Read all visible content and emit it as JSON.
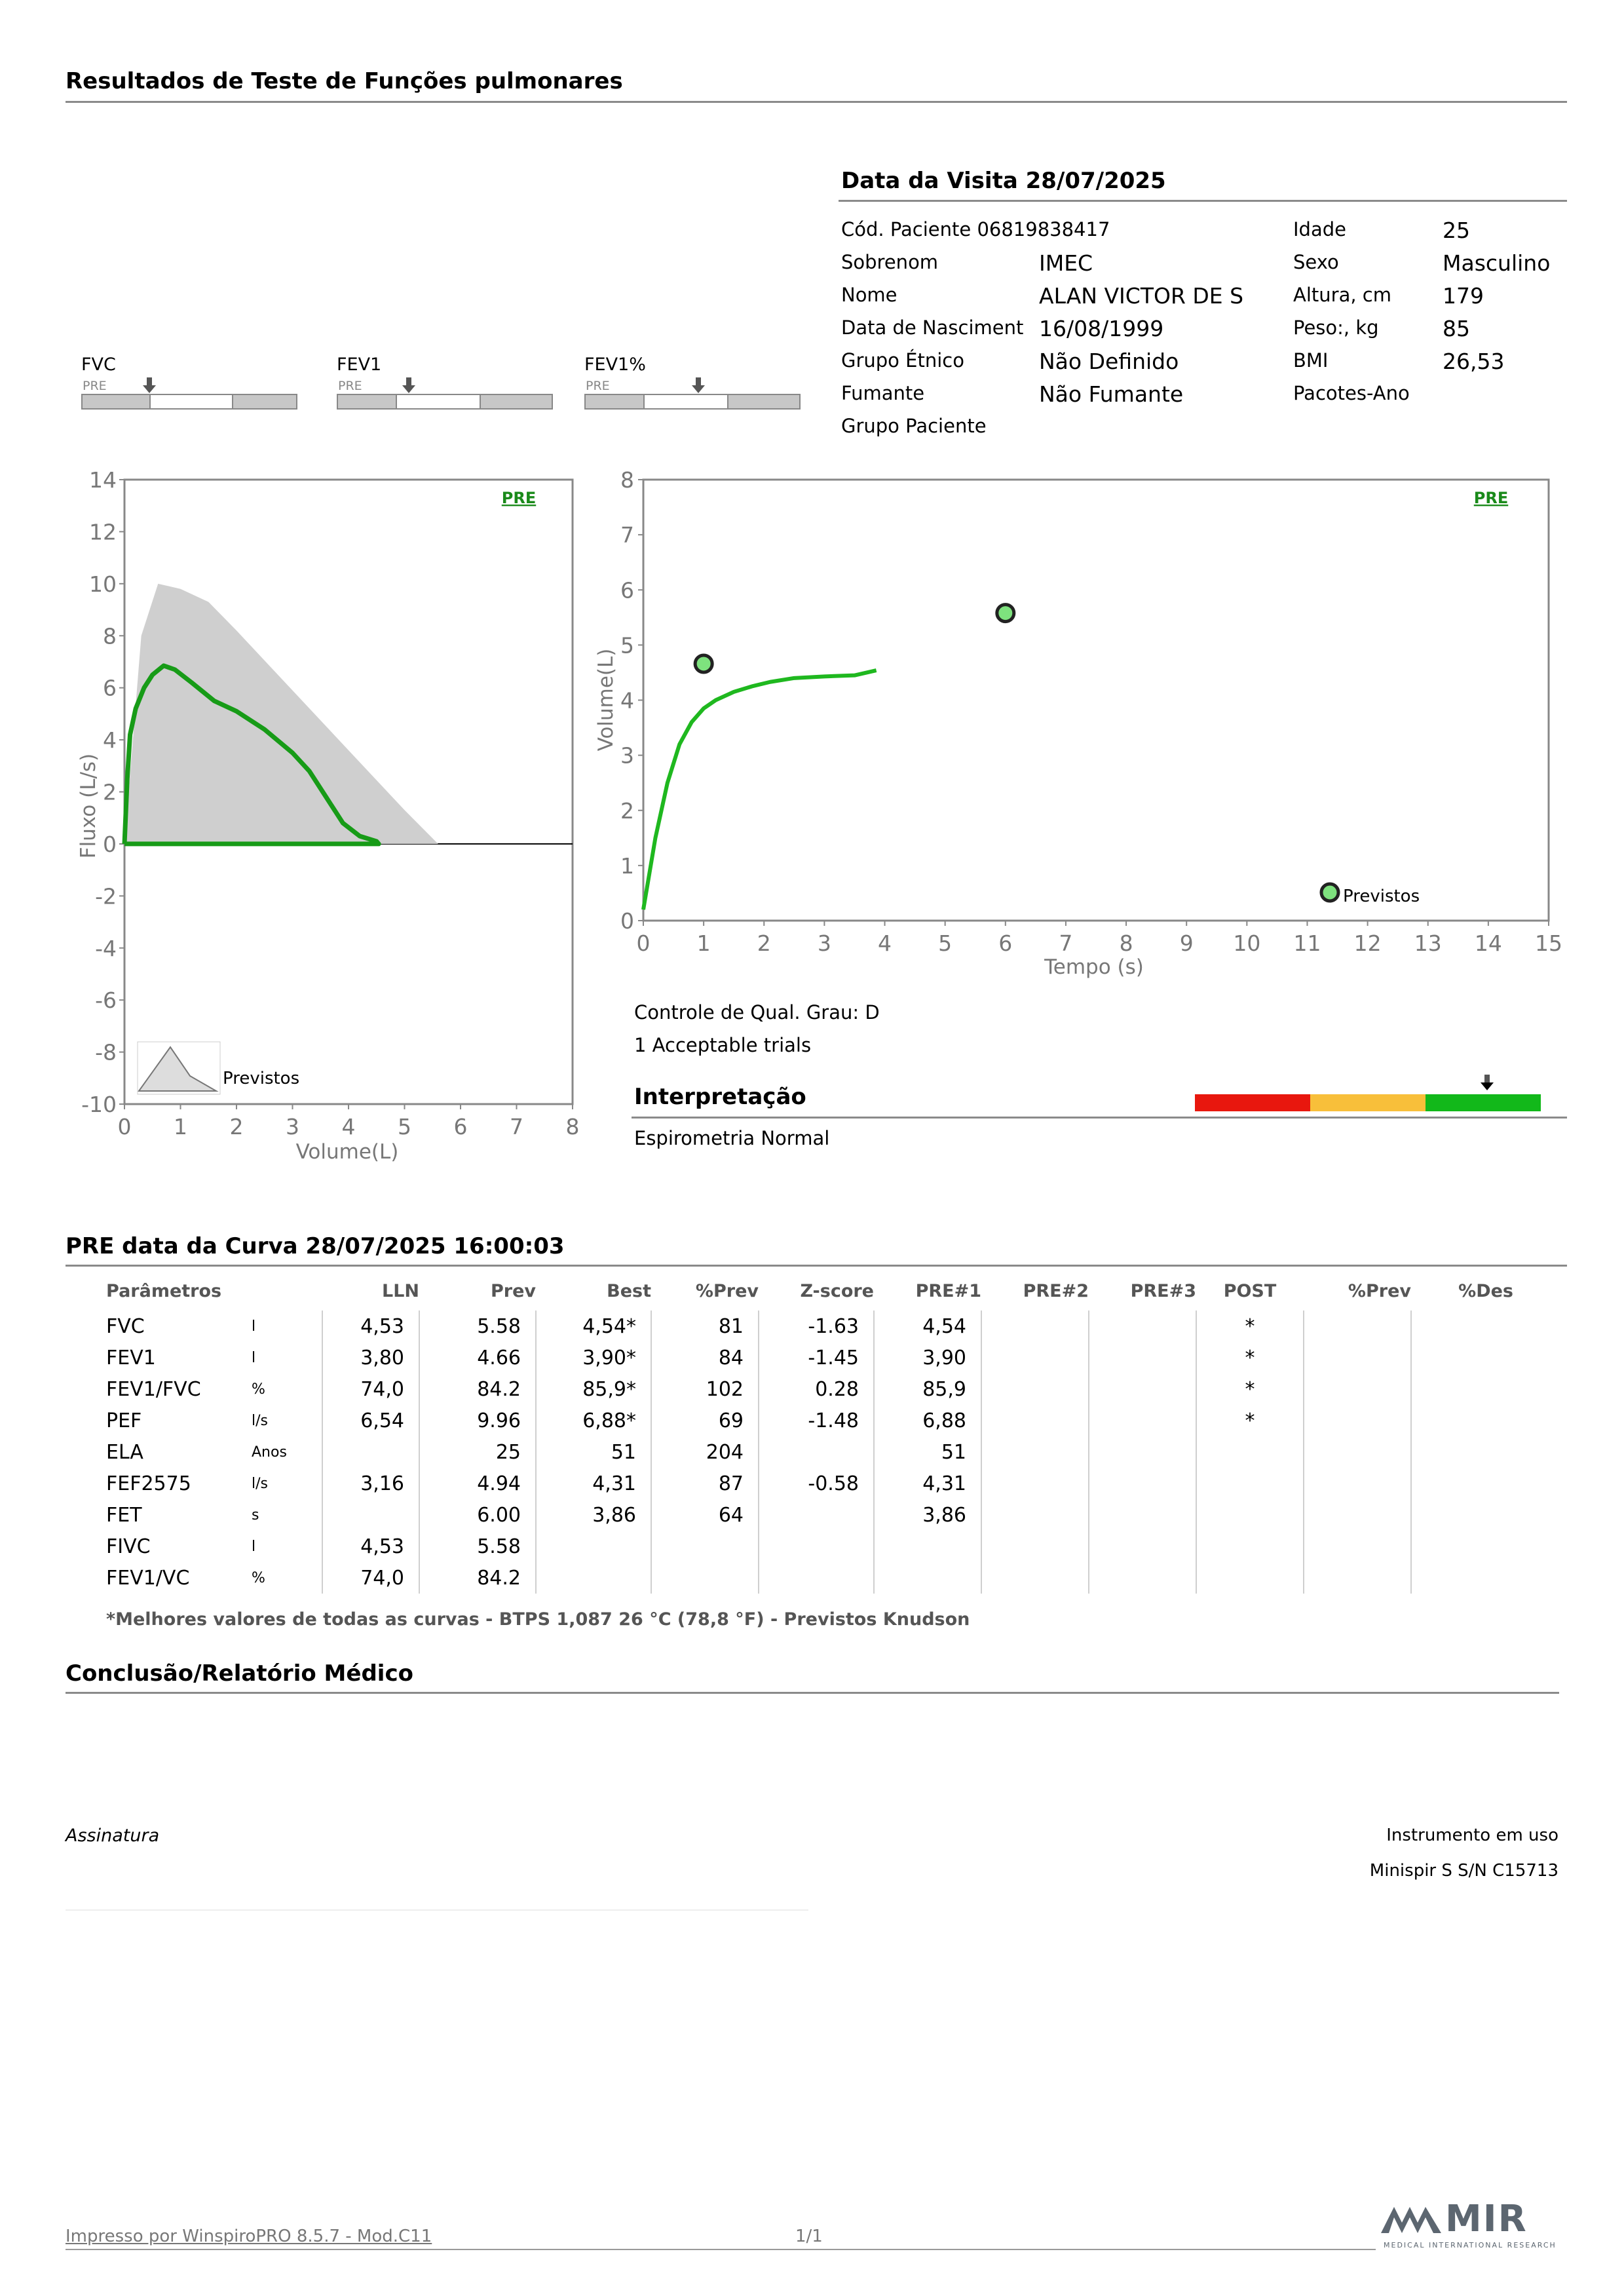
{
  "header": {
    "title": "Resultados de Teste de Funções pulmonares"
  },
  "visit": {
    "title": "Data da Visita 28/07/2025",
    "left": [
      {
        "label": "Cód. Paciente 06819838417",
        "value": ""
      },
      {
        "label": "Sobrenom",
        "value": "IMEC"
      },
      {
        "label": "Nome",
        "value": "ALAN VICTOR DE S"
      },
      {
        "label": "Data de Nasciment",
        "value": "16/08/1999"
      },
      {
        "label": "Grupo Étnico",
        "value": "Não Definido"
      },
      {
        "label": "Fumante",
        "value": "Não Fumante"
      },
      {
        "label": "Grupo Paciente",
        "value": ""
      }
    ],
    "right": [
      {
        "label": "Idade",
        "value": "25"
      },
      {
        "label": "Sexo",
        "value": "Masculino"
      },
      {
        "label": "Altura, cm",
        "value": "179"
      },
      {
        "label": "Peso:, kg",
        "value": "85"
      },
      {
        "label": "BMI",
        "value": "26,53"
      },
      {
        "label": "Pacotes-Ano",
        "value": ""
      }
    ]
  },
  "gauges": [
    {
      "label": "FVC",
      "pre": "PRE"
    },
    {
      "label": "FEV1",
      "pre": "PRE"
    },
    {
      "label": "FEV1%",
      "pre": "PRE"
    }
  ],
  "chart_data": [
    {
      "type": "line",
      "title": "",
      "tag": "PRE",
      "xlabel": "Volume(L)",
      "ylabel": "Fluxo (L/s)",
      "xlim": [
        0,
        8
      ],
      "ylim": [
        -10,
        14
      ],
      "xticks": [
        "0",
        "1",
        "2",
        "3",
        "4",
        "5",
        "6",
        "7",
        "8"
      ],
      "yticks": [
        "14",
        "12",
        "10",
        "8",
        "6",
        "4",
        "2",
        "0",
        "-2",
        "-4",
        "-6",
        "-8",
        "-10"
      ],
      "predicted": {
        "name": "Previstos",
        "x": [
          0,
          0.3,
          0.6,
          1.0,
          1.5,
          2.0,
          3.0,
          4.0,
          5.0,
          5.6
        ],
        "y": [
          0,
          8,
          10,
          9.8,
          9.3,
          8.2,
          5.9,
          3.6,
          1.3,
          0
        ]
      },
      "series": [
        {
          "x": [
            0,
            0.05,
            0.1,
            0.2,
            0.35,
            0.5,
            0.7,
            0.9,
            1.2,
            1.6,
            2.0,
            2.5,
            3.0,
            3.3,
            3.6,
            3.9,
            4.2,
            4.5,
            4.54,
            4.0,
            3.0,
            2.0,
            1.0,
            0.2,
            0
          ],
          "y": [
            0,
            2.5,
            4.2,
            5.2,
            6.0,
            6.5,
            6.85,
            6.7,
            6.2,
            5.5,
            5.1,
            4.4,
            3.5,
            2.8,
            1.8,
            0.8,
            0.3,
            0.1,
            0,
            0,
            0,
            0,
            0,
            0,
            0
          ]
        }
      ]
    },
    {
      "type": "line",
      "title": "",
      "tag": "PRE",
      "xlabel": "Tempo (s)",
      "ylabel": "Volume(L)",
      "xlim": [
        0,
        15
      ],
      "ylim": [
        0,
        8
      ],
      "xticks": [
        "0",
        "1",
        "2",
        "3",
        "4",
        "5",
        "6",
        "7",
        "8",
        "9",
        "10",
        "11",
        "12",
        "13",
        "14",
        "15"
      ],
      "yticks": [
        "8",
        "7",
        "6",
        "5",
        "4",
        "3",
        "2",
        "1",
        "0"
      ],
      "predicted_points": {
        "name": "Previstos",
        "x": [
          1,
          6
        ],
        "y": [
          4.66,
          5.58
        ]
      },
      "series": [
        {
          "x": [
            0,
            0.2,
            0.4,
            0.6,
            0.8,
            1.0,
            1.2,
            1.5,
            1.8,
            2.1,
            2.5,
            3.0,
            3.5,
            3.86
          ],
          "y": [
            0.2,
            1.5,
            2.5,
            3.2,
            3.6,
            3.85,
            4.0,
            4.15,
            4.25,
            4.33,
            4.4,
            4.43,
            4.45,
            4.54
          ]
        }
      ]
    }
  ],
  "quality": {
    "line1": "Controle de Qual. Grau: D",
    "line2": "1 Acceptable trials"
  },
  "interpretation": {
    "title": "Interpretação",
    "text": "Espirometria Normal",
    "colors": [
      "#e8170e",
      "#f8bf3a",
      "#12b81a"
    ]
  },
  "curve": {
    "title": "PRE data da Curva 28/07/2025   16:00:03",
    "headers": [
      "Parâmetros",
      "",
      "LLN",
      "Prev",
      "Best",
      "%Prev",
      "Z-score",
      "PRE#1",
      "PRE#2",
      "PRE#3",
      "POST",
      "%Prev",
      "%Des"
    ],
    "rows": [
      [
        "FVC",
        "l",
        "4,53",
        "5.58",
        "4,54*",
        "81",
        "-1.63",
        "4,54",
        "",
        "",
        "*",
        "",
        ""
      ],
      [
        "FEV1",
        "l",
        "3,80",
        "4.66",
        "3,90*",
        "84",
        "-1.45",
        "3,90",
        "",
        "",
        "*",
        "",
        ""
      ],
      [
        "FEV1/FVC",
        "%",
        "74,0",
        "84.2",
        "85,9*",
        "102",
        "0.28",
        "85,9",
        "",
        "",
        "*",
        "",
        ""
      ],
      [
        "PEF",
        "l/s",
        "6,54",
        "9.96",
        "6,88*",
        "69",
        "-1.48",
        "6,88",
        "",
        "",
        "*",
        "",
        ""
      ],
      [
        "ELA",
        "Anos",
        "",
        "25",
        "51",
        "204",
        "",
        "51",
        "",
        "",
        "",
        "",
        ""
      ],
      [
        "FEF2575",
        "l/s",
        "3,16",
        "4.94",
        "4,31",
        "87",
        "-0.58",
        "4,31",
        "",
        "",
        "",
        "",
        ""
      ],
      [
        "FET",
        "s",
        "",
        "6.00",
        "3,86",
        "64",
        "",
        "3,86",
        "",
        "",
        "",
        "",
        ""
      ],
      [
        "FIVC",
        "l",
        "4,53",
        "5.58",
        "",
        "",
        "",
        "",
        "",
        "",
        "",
        "",
        ""
      ],
      [
        "FEV1/VC",
        "%",
        "74,0",
        "84.2",
        "",
        "",
        "",
        "",
        "",
        "",
        "",
        "",
        ""
      ]
    ],
    "note": "*Melhores valores de todas as curvas - BTPS  1,087  26 °C  (78,8 °F) - Previstos Knudson"
  },
  "conclusion": {
    "title": "Conclusão/Relatório Médico"
  },
  "signature": {
    "label": "Assinatura"
  },
  "instrument": {
    "label": "Instrumento em uso",
    "value": "Minispir S S/N C15713"
  },
  "footer": {
    "printed": "Impresso por WinspiroPRO  8.5.7 - Mod.C11",
    "page": "1/1",
    "logo": "MIR",
    "logo_sub": "MEDICAL INTERNATIONAL RESEARCH"
  }
}
